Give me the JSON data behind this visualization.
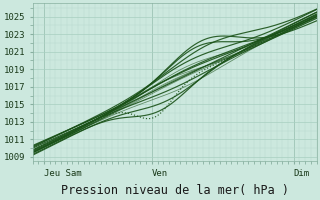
{
  "background_color": "#cce8de",
  "plot_bg_color": "#cce8de",
  "grid_major_color": "#a8cfc0",
  "grid_minor_color": "#b8d8cc",
  "line_color": "#1a5218",
  "xlim": [
    0,
    1
  ],
  "ylim": [
    1008.5,
    1026.5
  ],
  "yticks": [
    1009,
    1011,
    1013,
    1015,
    1017,
    1019,
    1021,
    1023,
    1025
  ],
  "xtick_labels": [
    "Jeu Sam",
    "Ven",
    "Dim"
  ],
  "xtick_positions": [
    0.04,
    0.42,
    0.92
  ],
  "xlabel": "Pression niveau de la mer( hPa )",
  "xlabel_fontsize": 8.5,
  "tick_fontsize": 6.5,
  "line_width": 0.85
}
